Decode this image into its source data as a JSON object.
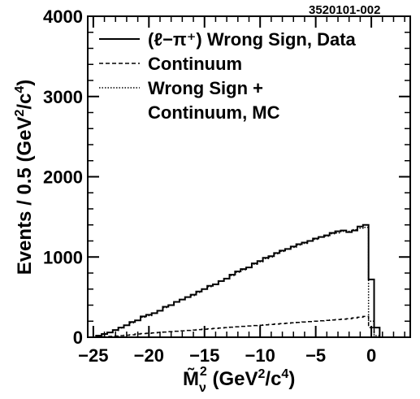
{
  "chart_data": {
    "type": "line",
    "figure_id": "3520101-002",
    "xlabel": "M̃ν² (GeV²/c⁴)",
    "xlabel_parts": {
      "base": "M̃",
      "sub": "ν",
      "sup": "2",
      "unit_pre": " (GeV",
      "unit_sup1": "2",
      "unit_mid": "/c",
      "unit_sup2": "4",
      "unit_post": ")"
    },
    "ylabel": "Events / 0.5 (GeV²/c⁴)",
    "ylabel_parts": {
      "pre": "Events / 0.5 (GeV",
      "sup1": "2",
      "mid": "/c",
      "sup2": "4",
      "post": ")"
    },
    "xlim": [
      -25.5,
      3.5
    ],
    "ylim": [
      0,
      4000
    ],
    "x_ticks": [
      -25,
      -20,
      -15,
      -10,
      -5,
      0
    ],
    "x_tick_labels": [
      "−25",
      "−20",
      "−15",
      "−10",
      "−5",
      "0"
    ],
    "y_ticks": [
      0,
      1000,
      2000,
      3000,
      4000
    ],
    "y_tick_labels": [
      "0",
      "1000",
      "2000",
      "3000",
      "4000"
    ],
    "legend_position": "top-right",
    "legend_entries": [
      {
        "key": "data",
        "label": "(ℓ−π⁺) Wrong Sign, Data",
        "style": "solid"
      },
      {
        "key": "continuum",
        "label": "Continuum",
        "style": "dashed"
      },
      {
        "key": "mc",
        "label_line1": "Wrong Sign +",
        "label_line2": "Continuum, MC",
        "style": "dotted"
      }
    ],
    "bin_width": 0.5,
    "series": [
      {
        "key": "data",
        "style": "solid",
        "x": [
          -24.5,
          -24,
          -23.5,
          -23,
          -22.5,
          -22,
          -21.5,
          -21,
          -20.5,
          -20,
          -19.5,
          -19,
          -18.5,
          -18,
          -17.5,
          -17,
          -16.5,
          -16,
          -15.5,
          -15,
          -14.5,
          -14,
          -13.5,
          -13,
          -12.5,
          -12,
          -11.5,
          -11,
          -10.5,
          -10,
          -9.5,
          -9,
          -8.5,
          -8,
          -7.5,
          -7,
          -6.5,
          -6,
          -5.5,
          -5,
          -4.5,
          -4,
          -3.5,
          -3,
          -2.5,
          -2,
          -1.5,
          -1,
          -0.5,
          0,
          0.5
        ],
        "values": [
          20,
          40,
          60,
          90,
          120,
          150,
          190,
          210,
          260,
          280,
          300,
          330,
          380,
          400,
          440,
          470,
          500,
          530,
          570,
          600,
          640,
          660,
          700,
          730,
          780,
          820,
          850,
          870,
          920,
          950,
          990,
          1010,
          1050,
          1080,
          1100,
          1130,
          1160,
          1180,
          1200,
          1230,
          1250,
          1270,
          1300,
          1320,
          1330,
          1310,
          1330,
          1380,
          1400,
          720,
          120
        ]
      },
      {
        "key": "continuum",
        "style": "dashed",
        "x": [
          -24.5,
          -24,
          -23.5,
          -23,
          -22.5,
          -22,
          -21.5,
          -21,
          -20.5,
          -20,
          -19.5,
          -19,
          -18.5,
          -18,
          -17.5,
          -17,
          -16.5,
          -16,
          -15.5,
          -15,
          -14.5,
          -14,
          -13.5,
          -13,
          -12.5,
          -12,
          -11.5,
          -11,
          -10.5,
          -10,
          -9.5,
          -9,
          -8.5,
          -8,
          -7.5,
          -7,
          -6.5,
          -6,
          -5.5,
          -5,
          -4.5,
          -4,
          -3.5,
          -3,
          -2.5,
          -2,
          -1.5,
          -1,
          -0.5,
          0,
          0.5
        ],
        "values": [
          0,
          5,
          10,
          15,
          20,
          25,
          30,
          40,
          45,
          50,
          55,
          60,
          65,
          70,
          75,
          80,
          85,
          90,
          95,
          100,
          105,
          110,
          115,
          120,
          125,
          130,
          135,
          140,
          145,
          150,
          155,
          160,
          165,
          170,
          175,
          180,
          185,
          190,
          195,
          200,
          205,
          210,
          215,
          220,
          225,
          230,
          240,
          250,
          260,
          120,
          0
        ]
      },
      {
        "key": "mc",
        "style": "dotted",
        "x": [
          -24.5,
          -24,
          -23.5,
          -23,
          -22.5,
          -22,
          -21.5,
          -21,
          -20.5,
          -20,
          -19.5,
          -19,
          -18.5,
          -18,
          -17.5,
          -17,
          -16.5,
          -16,
          -15.5,
          -15,
          -14.5,
          -14,
          -13.5,
          -13,
          -12.5,
          -12,
          -11.5,
          -11,
          -10.5,
          -10,
          -9.5,
          -9,
          -8.5,
          -8,
          -7.5,
          -7,
          -6.5,
          -6,
          -5.5,
          -5,
          -4.5,
          -4,
          -3.5,
          -3,
          -2.5,
          -2,
          -1.5,
          -1,
          -0.5,
          0,
          0.5
        ],
        "values": [
          15,
          35,
          60,
          85,
          115,
          150,
          180,
          210,
          250,
          270,
          300,
          330,
          370,
          400,
          440,
          470,
          500,
          520,
          560,
          600,
          630,
          660,
          700,
          730,
          770,
          810,
          840,
          870,
          910,
          940,
          980,
          1000,
          1040,
          1070,
          1100,
          1120,
          1150,
          1170,
          1200,
          1220,
          1250,
          1260,
          1290,
          1300,
          1320,
          1320,
          1340,
          1360,
          1370,
          200,
          20
        ]
      }
    ]
  }
}
